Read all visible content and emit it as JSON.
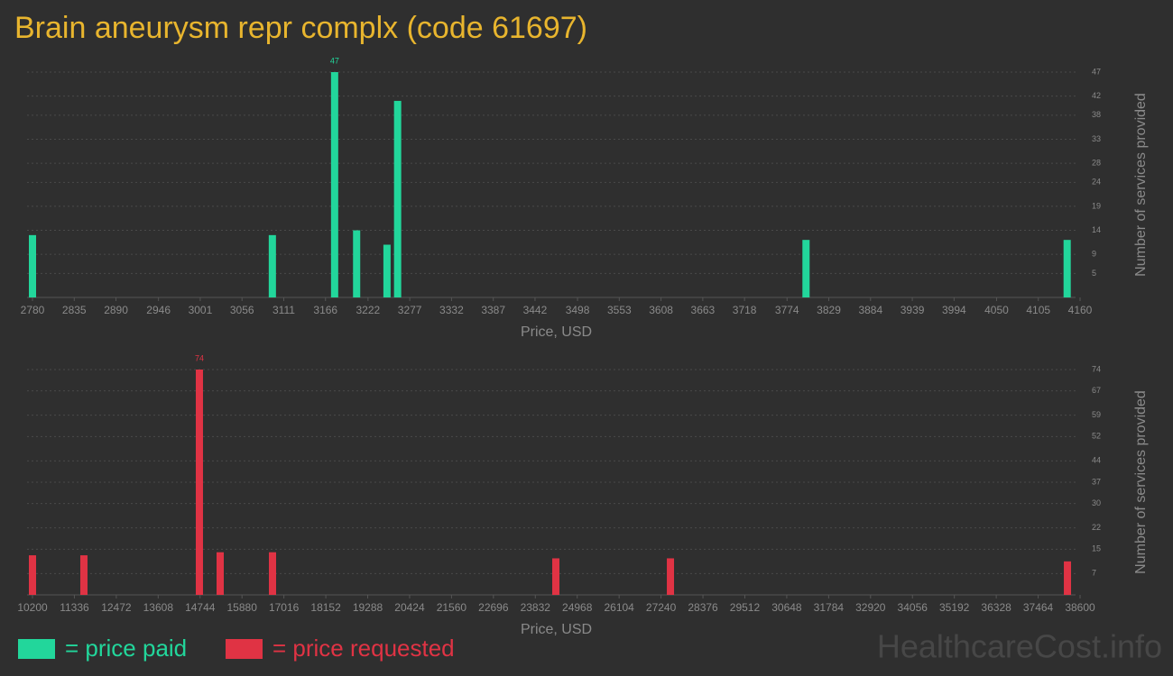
{
  "title": "Brain aneurysm repr complx (code 61697)",
  "watermark": "HealthcareCost.info",
  "chart_data": [
    {
      "type": "bar",
      "x": [
        2780,
        3096,
        3178,
        3207,
        3247,
        3261,
        3799,
        4143
      ],
      "series": [
        {
          "name": "= price paid",
          "color": "#22d69b",
          "values": [
            13,
            13,
            47,
            14,
            11,
            41,
            12,
            12
          ]
        }
      ],
      "xlim": [
        2780,
        4160
      ],
      "xticks": [
        2780,
        2835,
        2890,
        2946,
        3001,
        3056,
        3111,
        3166,
        3222,
        3277,
        3332,
        3387,
        3442,
        3498,
        3553,
        3608,
        3663,
        3718,
        3774,
        3829,
        3884,
        3939,
        3994,
        4050,
        4105,
        4160
      ],
      "ylim": [
        0,
        47
      ],
      "yticks": [
        5,
        9,
        14,
        19,
        24,
        28,
        33,
        38,
        42,
        47
      ],
      "x_label": "Price, USD",
      "y_label": "Number of services provided",
      "grid": true,
      "label_max": true
    },
    {
      "type": "bar",
      "x": [
        10200,
        11594,
        14725,
        15288,
        16707,
        24388,
        27495,
        38258
      ],
      "series": [
        {
          "name": "= price requested",
          "color": "#e03344",
          "values": [
            13,
            13,
            74,
            14,
            14,
            12,
            12,
            11
          ]
        }
      ],
      "xlim": [
        10200,
        38600
      ],
      "xticks": [
        10200,
        11336,
        12472,
        13608,
        14744,
        15880,
        17016,
        18152,
        19288,
        20424,
        21560,
        22696,
        23832,
        24968,
        26104,
        27240,
        28376,
        29512,
        30648,
        31784,
        32920,
        34056,
        35192,
        36328,
        37464,
        38600
      ],
      "ylim": [
        0,
        74
      ],
      "yticks": [
        7,
        15,
        22,
        30,
        37,
        44,
        52,
        59,
        67,
        74
      ],
      "x_label": "Price, USD",
      "y_label": "Number of services provided",
      "grid": true,
      "label_max": true
    }
  ]
}
